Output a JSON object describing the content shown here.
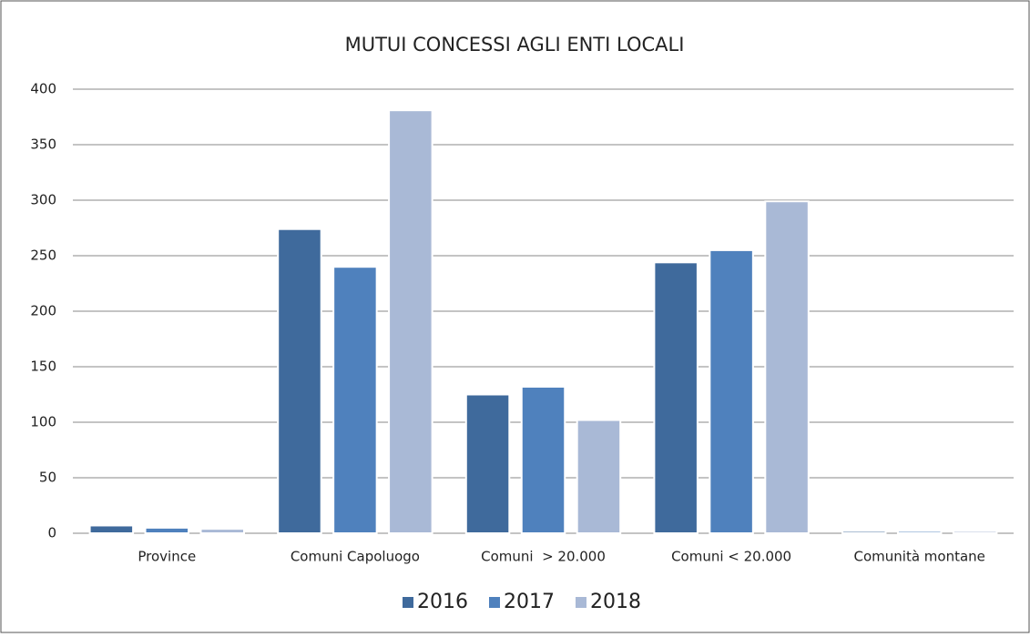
{
  "chart_data": {
    "type": "bar",
    "title": "MUTUI CONCESSI AGLI ENTI LOCALI",
    "categories": [
      "Province",
      "Comuni Capoluogo",
      "Comuni  > 20.000",
      "Comuni < 20.000",
      "Comunità montane"
    ],
    "series": [
      {
        "name": "2016",
        "color": "#3f6a9c",
        "values": [
          7,
          274,
          125,
          244,
          2
        ]
      },
      {
        "name": "2017",
        "color": "#4f81bd",
        "values": [
          5,
          240,
          132,
          255,
          2
        ]
      },
      {
        "name": "2018",
        "color": "#a9b9d6",
        "values": [
          4,
          381,
          102,
          299,
          2
        ]
      }
    ],
    "ylim": [
      0,
      400
    ],
    "yticks": [
      0,
      50,
      100,
      150,
      200,
      250,
      300,
      350,
      400
    ],
    "grid": true,
    "legend": "bottom"
  }
}
